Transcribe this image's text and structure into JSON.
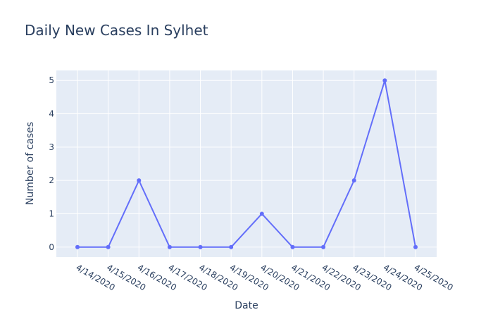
{
  "chart_data": {
    "type": "line",
    "title": "Daily New Cases In Sylhet",
    "xlabel": "Date",
    "ylabel": "Number of cases",
    "categories": [
      "4/14/2020",
      "4/15/2020",
      "4/16/2020",
      "4/17/2020",
      "4/18/2020",
      "4/19/2020",
      "4/20/2020",
      "4/21/2020",
      "4/22/2020",
      "4/23/2020",
      "4/24/2020",
      "4/25/2020"
    ],
    "series": [
      {
        "values": [
          0,
          0,
          2,
          0,
          0,
          0,
          1,
          0,
          0,
          2,
          5,
          0
        ]
      }
    ],
    "ylim": [
      -0.3,
      5.3
    ],
    "yticks": [
      0,
      1,
      2,
      3,
      4,
      5
    ],
    "grid": true,
    "colors": {
      "line": "#636efa",
      "plot_bg": "#e5ecf6",
      "grid": "#ffffff",
      "text": "#2a3f5f"
    }
  }
}
